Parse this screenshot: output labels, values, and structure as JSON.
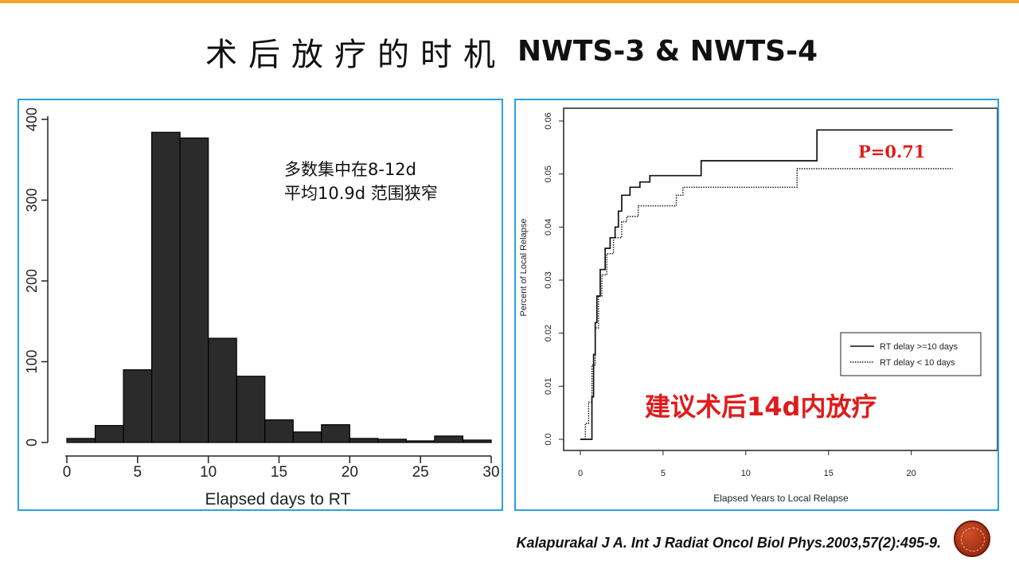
{
  "header": {
    "title_cn": "术后放疗的时机",
    "title_en": "NWTS-3 & NWTS-4"
  },
  "colors": {
    "panel_border": "#29a3df",
    "annotation_red": "#e01b1b",
    "bar_fill": "#2b2b2b",
    "accent": "#f4a52a"
  },
  "chart_data": [
    {
      "type": "bar",
      "subtype": "histogram",
      "title": "",
      "xlabel": "Elapsed days to RT",
      "ylabel": "",
      "bins": [
        [
          0,
          2
        ],
        [
          2,
          4
        ],
        [
          4,
          6
        ],
        [
          6,
          8
        ],
        [
          8,
          10
        ],
        [
          10,
          12
        ],
        [
          12,
          14
        ],
        [
          14,
          16
        ],
        [
          16,
          18
        ],
        [
          18,
          20
        ],
        [
          20,
          22
        ],
        [
          22,
          24
        ],
        [
          24,
          26
        ],
        [
          26,
          28
        ],
        [
          28,
          30
        ]
      ],
      "values": [
        5,
        21,
        90,
        384,
        377,
        129,
        82,
        28,
        13,
        22,
        5,
        4,
        2,
        8,
        3
      ],
      "xlim": [
        0,
        30
      ],
      "ylim": [
        0,
        400
      ],
      "xticks": [
        "0",
        "5",
        "10",
        "15",
        "20",
        "25",
        "30"
      ],
      "yticks": [
        "0",
        "100",
        "200",
        "300",
        "400"
      ],
      "annotation_lines": [
        "多数集中在8-12d",
        "平均10.9d 范围狭窄"
      ]
    },
    {
      "type": "line",
      "subtype": "step",
      "title": "",
      "xlabel": "Elapsed Years to Local Relapse",
      "ylabel": "Percent of Local Relapse",
      "xlim": [
        0,
        23
      ],
      "ylim": [
        0,
        0.06
      ],
      "xticks": [
        "0",
        "5",
        "10",
        "15",
        "20"
      ],
      "yticks": [
        "0.0",
        "0.01",
        "0.02",
        "0.03",
        "0.04",
        "0.05",
        "0.06"
      ],
      "legend_position": "bottom-right",
      "series": [
        {
          "name": "RT delay >=10 days",
          "style": "solid",
          "points": [
            [
              0,
              0
            ],
            [
              0.6,
              0
            ],
            [
              0.7,
              0.008
            ],
            [
              0.8,
              0.016
            ],
            [
              0.9,
              0.022
            ],
            [
              1.0,
              0.027
            ],
            [
              1.2,
              0.032
            ],
            [
              1.5,
              0.036
            ],
            [
              1.8,
              0.038
            ],
            [
              2.1,
              0.04
            ],
            [
              2.3,
              0.043
            ],
            [
              2.5,
              0.046
            ],
            [
              3.0,
              0.0475
            ],
            [
              3.6,
              0.0485
            ],
            [
              4.2,
              0.0497
            ],
            [
              7.3,
              0.0525
            ],
            [
              14.3,
              0.0583
            ],
            [
              22.5,
              0.0583
            ]
          ]
        },
        {
          "name": "RT delay < 10 days",
          "style": "dotted",
          "points": [
            [
              0,
              0
            ],
            [
              0.3,
              0.003
            ],
            [
              0.5,
              0.007
            ],
            [
              0.7,
              0.014
            ],
            [
              0.9,
              0.021
            ],
            [
              1.1,
              0.027
            ],
            [
              1.3,
              0.031
            ],
            [
              1.6,
              0.035
            ],
            [
              2.0,
              0.038
            ],
            [
              2.5,
              0.041
            ],
            [
              2.8,
              0.042
            ],
            [
              3.5,
              0.044
            ],
            [
              5.8,
              0.046
            ],
            [
              6.2,
              0.0475
            ],
            [
              13.1,
              0.051
            ],
            [
              22.5,
              0.051
            ]
          ]
        }
      ],
      "annotation_p": "P=0.71",
      "annotation_conclusion": "建议术后14d内放疗"
    }
  ],
  "footer": {
    "citation": "Kalapurakal J A. Int J Radiat Oncol Biol Phys.2003,57(2):495-9."
  }
}
